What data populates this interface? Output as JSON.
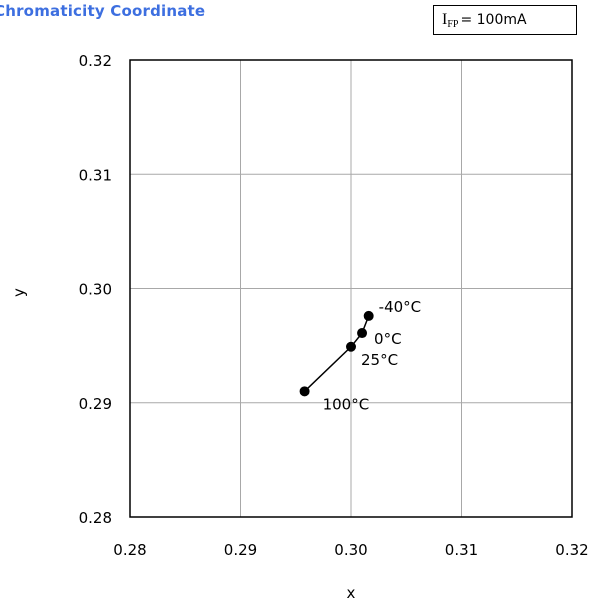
{
  "chart_title": "Chromaticity Coordinate",
  "condition": {
    "symbol": "I",
    "subscript": "FP",
    "value": "= 100mA"
  },
  "chart_data": {
    "type": "line",
    "xlabel": "x",
    "ylabel": "y",
    "xlim": [
      0.28,
      0.32
    ],
    "ylim": [
      0.28,
      0.32
    ],
    "xticks": [
      "0.28",
      "0.29",
      "0.30",
      "0.31",
      "0.32"
    ],
    "yticks": [
      "0.28",
      "0.29",
      "0.30",
      "0.31",
      "0.32"
    ],
    "grid": true,
    "points": [
      {
        "x": 0.3016,
        "y": 0.2976,
        "label": "-40°C"
      },
      {
        "x": 0.301,
        "y": 0.2961,
        "label": "0°C"
      },
      {
        "x": 0.3,
        "y": 0.2949,
        "label": "25°C"
      },
      {
        "x": 0.2958,
        "y": 0.291,
        "label": "100°C"
      }
    ]
  }
}
